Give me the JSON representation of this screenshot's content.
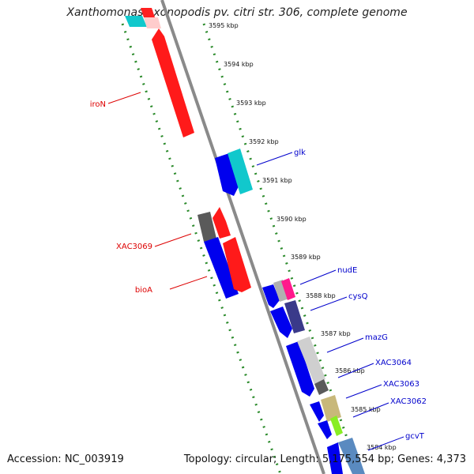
{
  "title": "Xanthomonas axonopodis pv. citri str. 306, complete genome",
  "footer": {
    "accession": "Accession: NC_003919",
    "topology": "Topology: circular; Length: 5,175,554 bp; Genes: 4,373"
  },
  "colors": {
    "backbone": "#8a8a8a",
    "ticks": "#2a8a2a",
    "forward_label": "#0000cc",
    "reverse_label": "#dd0000"
  },
  "scale": {
    "unit": "kbp",
    "positions_kbp": [
      3595,
      3594,
      3593,
      3592,
      3591,
      3590,
      3589,
      3588,
      3587,
      3586,
      3585,
      3584
    ],
    "labels": [
      "3595 kbp",
      "3594 kbp",
      "3593 kbp",
      "3592 kbp",
      "3591 kbp",
      "3590 kbp",
      "3589 kbp",
      "3588 kbp",
      "3587 kbp",
      "3586 kbp",
      "3585 kbp",
      "3584 kbp"
    ]
  },
  "gene_labels": [
    {
      "name": "iroN",
      "strand": "reverse"
    },
    {
      "name": "glk",
      "strand": "forward"
    },
    {
      "name": "XAC3069",
      "strand": "reverse"
    },
    {
      "name": "bioA",
      "strand": "reverse"
    },
    {
      "name": "nudE",
      "strand": "forward"
    },
    {
      "name": "cysQ",
      "strand": "forward"
    },
    {
      "name": "mazG",
      "strand": "forward"
    },
    {
      "name": "XAC3064",
      "strand": "forward"
    },
    {
      "name": "XAC3063",
      "strand": "forward"
    },
    {
      "name": "XAC3062",
      "strand": "forward"
    },
    {
      "name": "gcvT",
      "strand": "forward"
    }
  ]
}
